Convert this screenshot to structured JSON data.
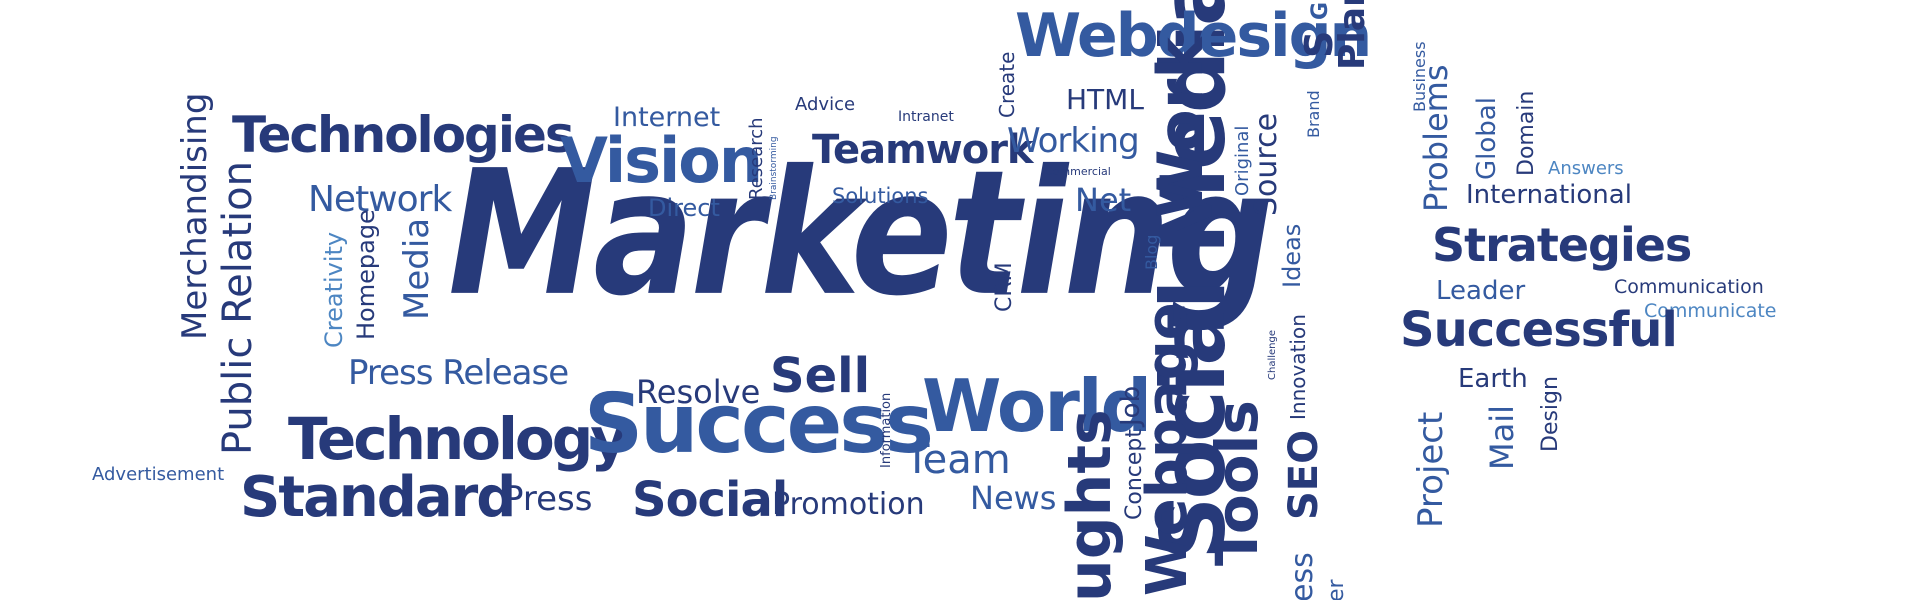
{
  "colors": {
    "dark_navy": "#273a7a",
    "medium_blue": "#345aa0",
    "light_blue": "#4d86c2",
    "background": "#ffffff"
  },
  "words": {
    "marketing": "Marketing",
    "social_media": "Social Media",
    "webdesign": "Webdesign",
    "technologies": "Technologies",
    "vision": "Vision",
    "internet": "Internet",
    "advice": "Advice",
    "intranet": "Intranet",
    "create": "Create",
    "html": "HTML",
    "teamwork": "Teamwork",
    "working": "Working",
    "commercial": "Commercial",
    "research": "Research",
    "brainstorming": "Brainstorming",
    "solutions": "Solutions",
    "net": "Net",
    "direct": "Direct",
    "network": "Network",
    "merchandising": "Merchandising",
    "public_relation": "Public Relation",
    "creativity": "Creativity",
    "homepage": "Homepage",
    "media": "Media",
    "press_release": "Press Release",
    "resolve": "Resolve",
    "sell": "Sell",
    "technology": "Technology",
    "success": "Success",
    "world": "World",
    "advertisement": "Advertisement",
    "standard": "Standard",
    "press": "Press",
    "social": "Social",
    "promotion": "Promotion",
    "news": "News",
    "team": "Team",
    "information": "Information",
    "work": "Work",
    "blog": "Blog",
    "crm": "CRM",
    "original": "Original",
    "source": "Source",
    "brand": "Brand",
    "plan": "Plan",
    "ideas": "Ideas",
    "business": "Business",
    "problems": "Problems",
    "global": "Global",
    "domain": "Domain",
    "answers": "Answers",
    "international": "International",
    "strategies": "Strategies",
    "leader": "Leader",
    "communication": "Communication",
    "communicate": "Communicate",
    "successful": "Successful",
    "earth": "Earth",
    "mail": "Mail",
    "design": "Design",
    "project": "Project",
    "webpage": "Webpage",
    "tools": "Tools",
    "seo": "SEO",
    "innovation": "Innovation",
    "challenge": "Challenge",
    "concept": "Concept",
    "job": "Job",
    "thoughts_partial": "ughts",
    "top_partial_s": "S",
    "top_partial_g": "G",
    "bottom_partial_ess": "ess",
    "bottom_partial_er": "er"
  }
}
